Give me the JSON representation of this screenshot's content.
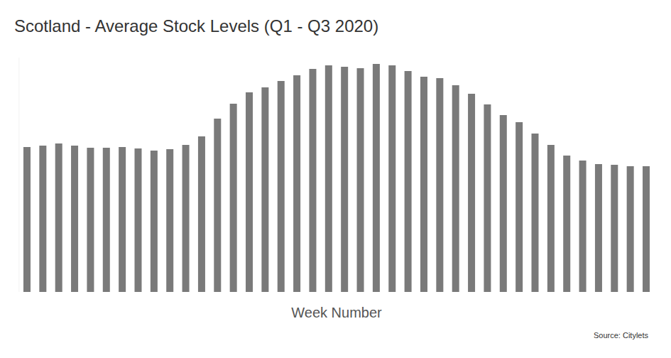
{
  "chart_data": {
    "type": "bar",
    "title": "Scotland - Average Stock Levels (Q1 - Q3 2020)",
    "xlabel": "Week Number",
    "annotations": [
      "Source: Citylets"
    ],
    "categories": [
      null,
      null,
      null,
      null,
      null,
      null,
      null,
      null,
      null,
      null,
      null,
      null,
      null,
      null,
      null,
      null,
      null,
      null,
      null,
      null,
      null,
      null,
      null,
      null,
      null,
      null,
      null,
      null,
      null,
      null,
      null,
      null,
      null,
      null,
      null,
      null,
      null,
      null,
      null,
      null
    ],
    "values": [
      204,
      206,
      209,
      206,
      203,
      203,
      204,
      202,
      199,
      201,
      207,
      219,
      244,
      265,
      281,
      288,
      297,
      305,
      314,
      319,
      317,
      315,
      321,
      319,
      311,
      303,
      301,
      291,
      279,
      264,
      249,
      239,
      223,
      207,
      192,
      185,
      180,
      179,
      177,
      177
    ],
    "color": "#7a7a7a",
    "ylim": [
      0,
      330
    ],
    "tick_labels": false,
    "grid": false
  }
}
